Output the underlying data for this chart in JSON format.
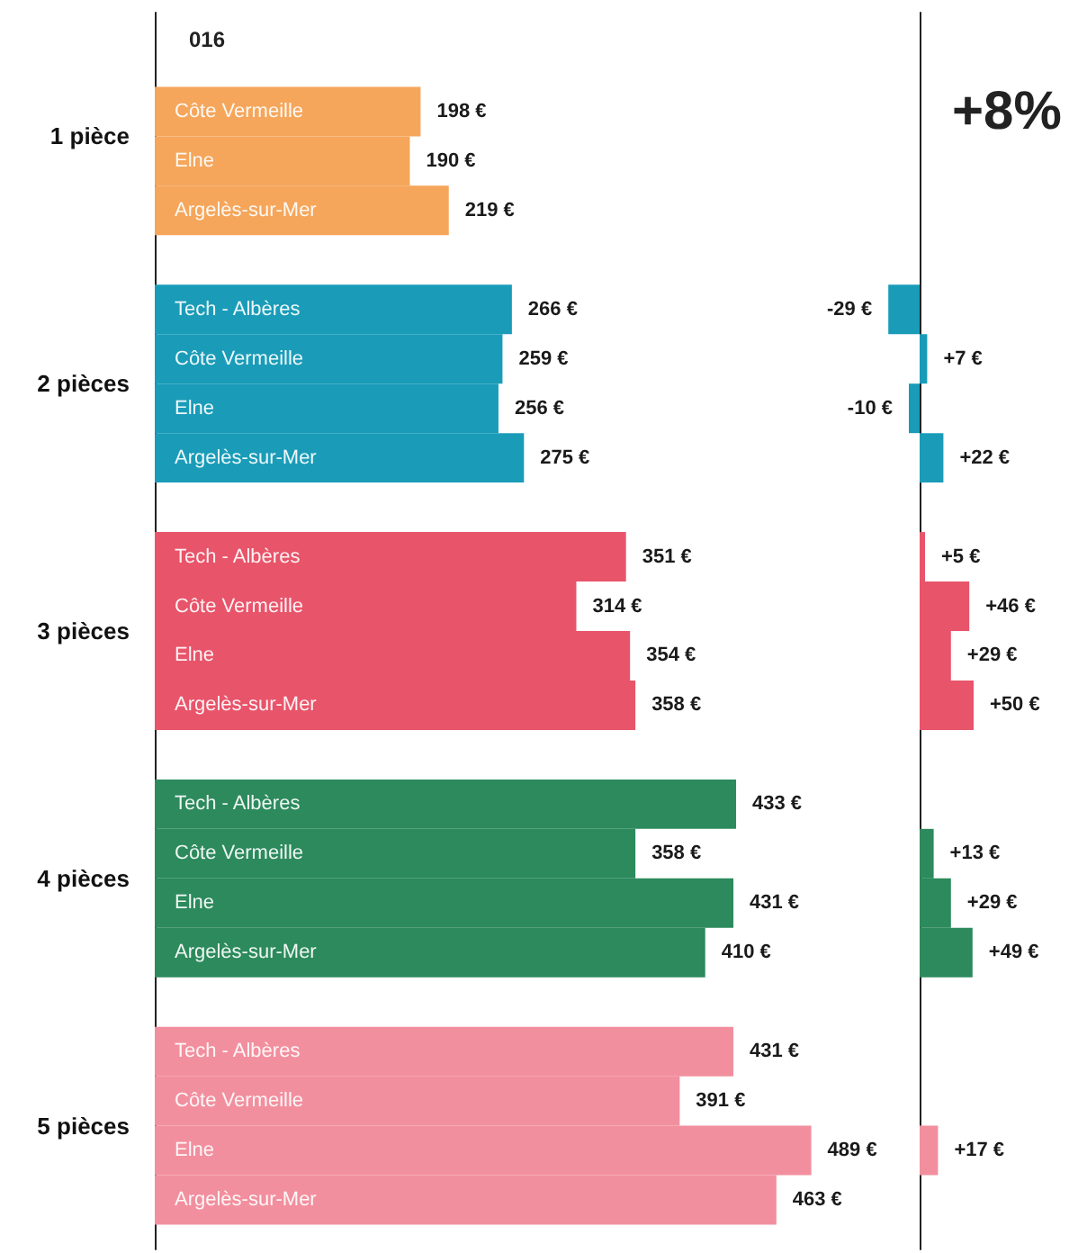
{
  "chart_data": [
    {
      "type": "bar",
      "orientation": "horizontal",
      "title": "016",
      "tick_labels": "y",
      "categories": [
        "1 pièce",
        "2 pièces",
        "3 pièces",
        "4 pièces",
        "5 pièces"
      ],
      "series": [
        {
          "name": "Tech - Albères",
          "colors": [
            null,
            "#1a9cb8",
            "#e8546a",
            "#2c8a5c",
            "#f28f9e"
          ],
          "values": [
            null,
            266,
            351,
            433,
            431
          ],
          "value_labels": [
            null,
            "266 €",
            "351 €",
            "433 €",
            "431 €"
          ]
        },
        {
          "name": "Côte Vermeille",
          "colors": [
            "#f5a65b",
            "#1a9cb8",
            "#e8546a",
            "#2c8a5c",
            "#f28f9e"
          ],
          "values": [
            198,
            259,
            314,
            358,
            391
          ],
          "value_labels": [
            "198 €",
            "259 €",
            "314 €",
            "358 €",
            "391 €"
          ]
        },
        {
          "name": "Elne",
          "colors": [
            "#f5a65b",
            "#1a9cb8",
            "#e8546a",
            "#2c8a5c",
            "#f28f9e"
          ],
          "values": [
            190,
            256,
            354,
            431,
            489
          ],
          "value_labels": [
            "190 €",
            "256 €",
            "354 €",
            "431 €",
            "489 €"
          ]
        },
        {
          "name": "Argelès-sur-Mer",
          "colors": [
            "#f5a65b",
            "#1a9cb8",
            "#e8546a",
            "#2c8a5c",
            "#f28f9e"
          ],
          "values": [
            219,
            275,
            358,
            410,
            463
          ],
          "value_labels": [
            "219 €",
            "275 €",
            "358 €",
            "410 €",
            "463 €"
          ]
        }
      ]
    },
    {
      "type": "bar",
      "orientation": "horizontal",
      "title": "+8%",
      "tick_labels": false,
      "series": [
        {
          "colors": [
            null,
            "#1a9cb8",
            "#e8546a",
            null,
            null
          ],
          "values": [
            null,
            -29,
            5,
            null,
            null
          ],
          "value_labels": [
            null,
            "-29 €",
            "+5 €",
            null,
            null
          ]
        },
        {
          "colors": [
            null,
            "#1a9cb8",
            "#e8546a",
            "#2c8a5c",
            null
          ],
          "values": [
            null,
            7,
            46,
            13,
            null
          ],
          "value_labels": [
            null,
            "+7 €",
            "+46 €",
            "+13 €",
            null
          ]
        },
        {
          "colors": [
            null,
            "#1a9cb8",
            "#e8546a",
            "#2c8a5c",
            "#f28f9e"
          ],
          "values": [
            null,
            -10,
            29,
            29,
            17
          ],
          "value_labels": [
            null,
            "-10 €",
            "+29 €",
            "+29 €",
            "+17 €"
          ]
        },
        {
          "colors": [
            null,
            "#1a9cb8",
            "#e8546a",
            "#2c8a5c",
            null
          ],
          "values": [
            null,
            22,
            50,
            49,
            null
          ],
          "value_labels": [
            null,
            "+22 €",
            "+50 €",
            "+49 €",
            null
          ]
        }
      ]
    }
  ]
}
